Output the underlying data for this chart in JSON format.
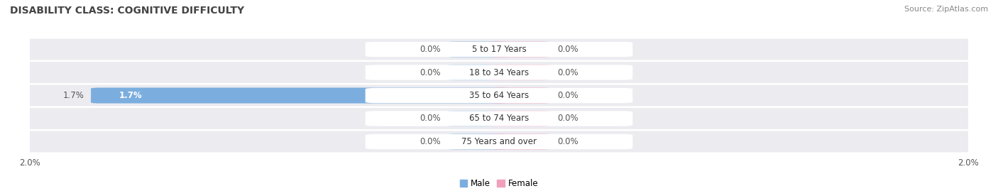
{
  "title": "DISABILITY CLASS: COGNITIVE DIFFICULTY",
  "source": "Source: ZipAtlas.com",
  "categories": [
    "5 to 17 Years",
    "18 to 34 Years",
    "35 to 64 Years",
    "65 to 74 Years",
    "75 Years and over"
  ],
  "male_values": [
    0.0,
    0.0,
    1.7,
    0.0,
    0.0
  ],
  "female_values": [
    0.0,
    0.0,
    0.0,
    0.0,
    0.0
  ],
  "xlim": 2.0,
  "male_color": "#7baede",
  "female_color": "#f0a0ba",
  "row_bg_color": "#ebebf0",
  "center_label_color": "#ffffff",
  "title_fontsize": 10,
  "label_fontsize": 8.5,
  "tick_fontsize": 8.5,
  "source_fontsize": 8,
  "min_bar_width": 0.18
}
